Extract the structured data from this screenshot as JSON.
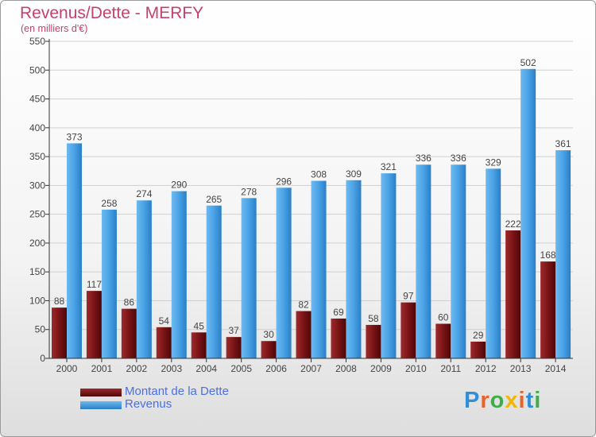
{
  "header": {
    "title": "Revenus/Dette - MERFY",
    "subtitle": "(en milliers d'€)"
  },
  "logo": {
    "text": "Proxiti",
    "colors": [
      "#2f8fd8",
      "#e8632a",
      "#3fae49",
      "#f2b705",
      "#e8632a",
      "#2f8fd8",
      "#3fae49"
    ]
  },
  "chart_data": {
    "type": "bar",
    "categories": [
      "2000",
      "2001",
      "2002",
      "2003",
      "2004",
      "2005",
      "2006",
      "2007",
      "2008",
      "2009",
      "2010",
      "2011",
      "2012",
      "2013",
      "2014"
    ],
    "series": [
      {
        "name": "Montant de la Dette",
        "color": "#7a1416",
        "values": [
          88,
          117,
          86,
          54,
          45,
          37,
          30,
          82,
          69,
          58,
          97,
          60,
          29,
          222,
          168
        ]
      },
      {
        "name": "Revenus",
        "color": "#4da6e8",
        "values": [
          373,
          258,
          274,
          290,
          265,
          278,
          296,
          308,
          309,
          321,
          336,
          336,
          329,
          502,
          361
        ]
      }
    ],
    "ylim": [
      0,
      550
    ],
    "yticks": [
      0,
      50,
      100,
      150,
      200,
      250,
      300,
      350,
      400,
      450,
      500,
      550
    ],
    "grid": true,
    "legend": "bottom-left",
    "data_labels": true
  }
}
